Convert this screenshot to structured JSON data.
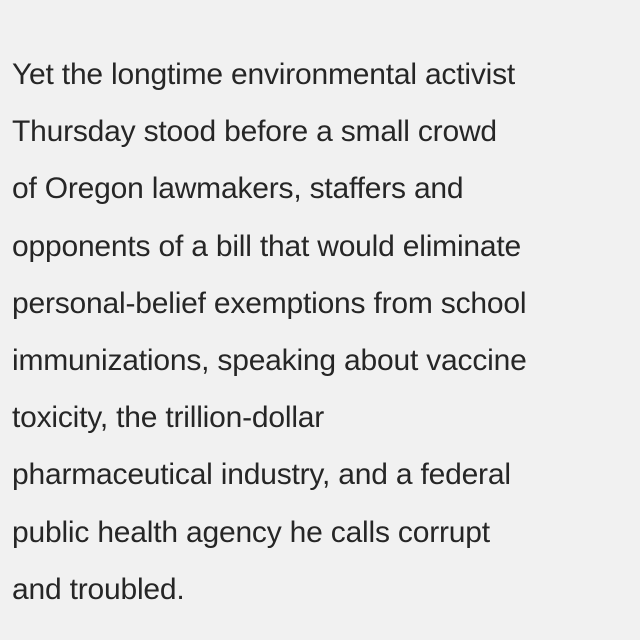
{
  "article": {
    "lines": [
      "Yet the longtime environmental activist",
      "Thursday stood before a small crowd",
      "of Oregon lawmakers, staffers and",
      "opponents of a bill that would eliminate",
      "personal-belief exemptions from school",
      "immunizations, speaking about vaccine",
      "toxicity, the trillion-dollar",
      "pharmaceutical industry, and a federal",
      "public health agency he calls corrupt",
      "and troubled."
    ]
  },
  "colors": {
    "background": "#f1f1f1",
    "text": "#262626"
  }
}
